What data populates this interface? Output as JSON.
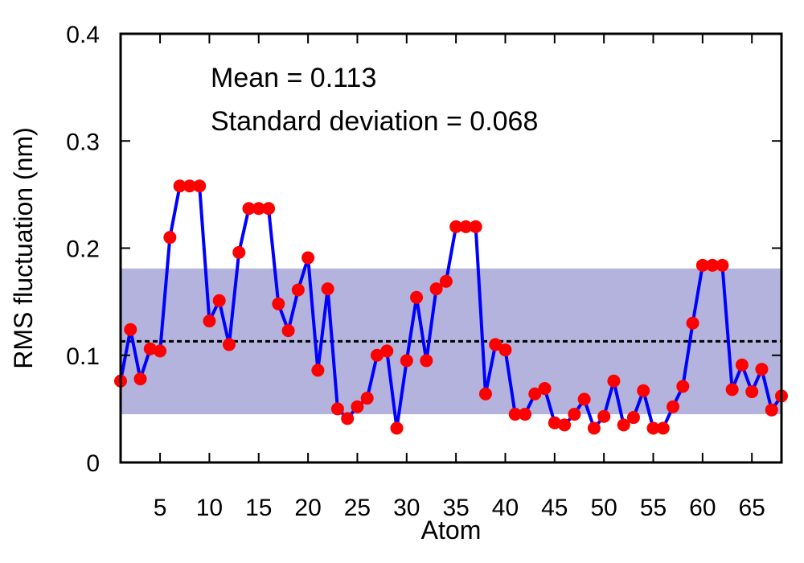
{
  "chart_data": {
    "type": "line",
    "xlabel": "Atom",
    "ylabel": "RMS fluctuation (nm)",
    "xlim": [
      1,
      68
    ],
    "ylim": [
      0,
      0.4
    ],
    "x_ticks": [
      5,
      10,
      15,
      20,
      25,
      30,
      35,
      40,
      45,
      50,
      55,
      60,
      65
    ],
    "y_ticks": [
      {
        "value": 0,
        "label": "0"
      },
      {
        "value": 0.1,
        "label": "0.1"
      },
      {
        "value": 0.2,
        "label": "0.2"
      },
      {
        "value": 0.3,
        "label": "0.3"
      },
      {
        "value": 0.4,
        "label": "0.4"
      }
    ],
    "annotations": {
      "mean_text": "Mean = 0.113",
      "std_text": "Standard deviation = 0.068"
    },
    "mean": 0.113,
    "std_band": [
      0.045,
      0.181
    ],
    "colors": {
      "line": "#0000ff",
      "points": "#ff0000",
      "band": "#b3b3dd",
      "mean_line": "#000000"
    },
    "x": [
      1,
      2,
      3,
      4,
      5,
      6,
      7,
      8,
      9,
      10,
      11,
      12,
      13,
      14,
      15,
      16,
      17,
      18,
      19,
      20,
      21,
      22,
      23,
      24,
      25,
      26,
      27,
      28,
      29,
      30,
      31,
      32,
      33,
      34,
      35,
      36,
      37,
      38,
      39,
      40,
      41,
      42,
      43,
      44,
      45,
      46,
      47,
      48,
      49,
      50,
      51,
      52,
      53,
      54,
      55,
      56,
      57,
      58,
      59,
      60,
      61,
      62,
      63,
      64,
      65,
      66,
      67,
      68
    ],
    "values": [
      0.076,
      0.124,
      0.078,
      0.106,
      0.104,
      0.21,
      0.258,
      0.258,
      0.258,
      0.132,
      0.151,
      0.11,
      0.196,
      0.237,
      0.237,
      0.237,
      0.148,
      0.123,
      0.161,
      0.191,
      0.086,
      0.162,
      0.05,
      0.041,
      0.052,
      0.06,
      0.1,
      0.104,
      0.032,
      0.095,
      0.154,
      0.095,
      0.162,
      0.169,
      0.22,
      0.22,
      0.22,
      0.064,
      0.11,
      0.105,
      0.045,
      0.045,
      0.064,
      0.069,
      0.037,
      0.035,
      0.045,
      0.059,
      0.032,
      0.043,
      0.076,
      0.035,
      0.042,
      0.067,
      0.032,
      0.032,
      0.052,
      0.071,
      0.13,
      0.184,
      0.184,
      0.184,
      0.068,
      0.091,
      0.066,
      0.087,
      0.049,
      0.062
    ]
  }
}
